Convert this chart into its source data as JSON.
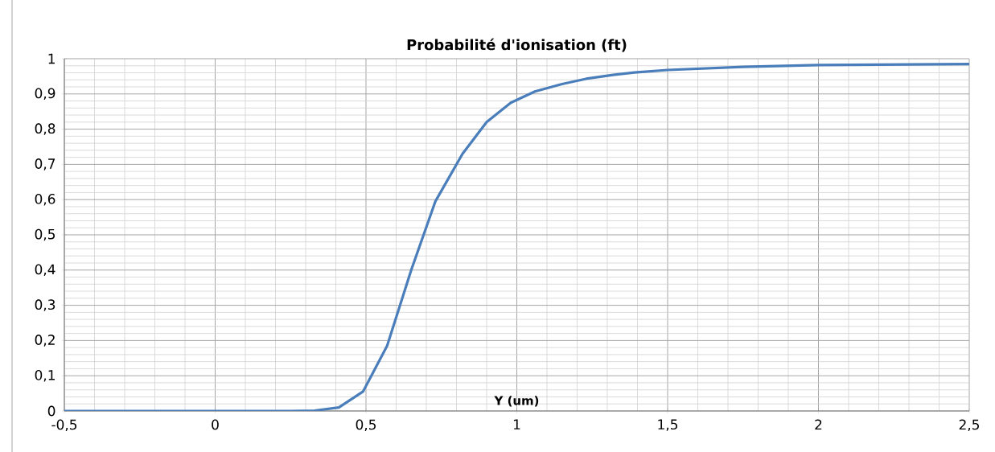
{
  "chart_data": {
    "type": "line",
    "title": "Probabilité d'ionisation (ft)",
    "xlabel": "Y (um)",
    "x": [
      -0.5,
      0,
      0.25,
      0.33,
      0.41,
      0.49,
      0.57,
      0.65,
      0.73,
      0.82,
      0.9,
      0.98,
      1.06,
      1.15,
      1.23,
      1.31,
      1.39,
      1.5,
      1.75,
      2.0,
      2.5
    ],
    "series": [
      {
        "color": "#4a7ebb",
        "values": [
          0,
          0,
          0,
          0.001,
          0.01,
          0.055,
          0.185,
          0.4,
          0.595,
          0.73,
          0.82,
          0.875,
          0.907,
          0.928,
          0.943,
          0.953,
          0.961,
          0.968,
          0.977,
          0.982,
          0.985
        ]
      }
    ],
    "xlim": [
      -0.5,
      2.5
    ],
    "ylim": [
      0,
      1
    ],
    "xticks": [
      {
        "value": -0.5,
        "label": "-0,5"
      },
      0,
      {
        "value": 0.5,
        "label": "0,5"
      },
      1,
      {
        "value": 1.5,
        "label": "1,5"
      },
      2,
      {
        "value": 2.5,
        "label": "2,5"
      }
    ],
    "yticks": [
      0,
      {
        "value": 0.1,
        "label": "0,1"
      },
      {
        "value": 0.2,
        "label": "0,2"
      },
      {
        "value": 0.3,
        "label": "0,3"
      },
      {
        "value": 0.4,
        "label": "0,4"
      },
      {
        "value": 0.5,
        "label": "0,5"
      },
      {
        "value": 0.6,
        "label": "0,6"
      },
      {
        "value": 0.7,
        "label": "0,7"
      },
      {
        "value": 0.8,
        "label": "0,8"
      },
      {
        "value": 0.9,
        "label": "0,9"
      },
      1
    ],
    "grid": true,
    "marker": "none",
    "line_style": "solid"
  }
}
